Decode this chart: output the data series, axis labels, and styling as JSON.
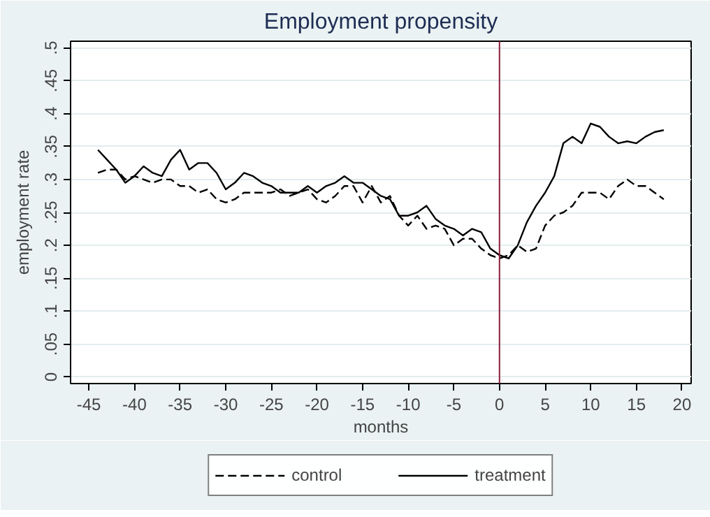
{
  "chart_data": {
    "type": "line",
    "title": "Employment propensity",
    "xlabel": "months",
    "ylabel": "employment rate",
    "x": [
      -44,
      -43,
      -42,
      -41,
      -40,
      -39,
      -38,
      -37,
      -36,
      -35,
      -34,
      -33,
      -32,
      -31,
      -30,
      -29,
      -28,
      -27,
      -26,
      -25,
      -24,
      -23,
      -22,
      -21,
      -20,
      -19,
      -18,
      -17,
      -16,
      -15,
      -14,
      -13,
      -12,
      -11,
      -10,
      -9,
      -8,
      -7,
      -6,
      -5,
      -4,
      -3,
      -2,
      -1,
      0,
      1,
      2,
      3,
      4,
      5,
      6,
      7,
      8,
      9,
      10,
      11,
      12,
      13,
      14,
      15,
      16,
      17,
      18
    ],
    "series": [
      {
        "name": "control",
        "color": "#000000",
        "line_style": "dashed",
        "values": [
          0.31,
          0.315,
          0.315,
          0.3,
          0.305,
          0.3,
          0.295,
          0.3,
          0.3,
          0.29,
          0.29,
          0.28,
          0.285,
          0.27,
          0.265,
          0.27,
          0.28,
          0.28,
          0.28,
          0.28,
          0.285,
          0.275,
          0.28,
          0.285,
          0.27,
          0.265,
          0.275,
          0.29,
          0.29,
          0.265,
          0.29,
          0.265,
          0.275,
          0.245,
          0.23,
          0.245,
          0.225,
          0.23,
          0.225,
          0.2,
          0.21,
          0.21,
          0.195,
          0.185,
          0.18,
          0.185,
          0.2,
          0.19,
          0.195,
          0.23,
          0.245,
          0.25,
          0.26,
          0.28,
          0.28,
          0.28,
          0.27,
          0.29,
          0.3,
          0.29,
          0.29,
          0.28,
          0.27
        ]
      },
      {
        "name": "treatment",
        "color": "#000000",
        "line_style": "solid",
        "values": [
          0.345,
          0.33,
          0.315,
          0.295,
          0.305,
          0.32,
          0.31,
          0.305,
          0.33,
          0.345,
          0.315,
          0.325,
          0.325,
          0.31,
          0.285,
          0.295,
          0.31,
          0.305,
          0.295,
          0.29,
          0.28,
          0.28,
          0.28,
          0.29,
          0.28,
          0.29,
          0.295,
          0.305,
          0.295,
          0.295,
          0.285,
          0.275,
          0.27,
          0.245,
          0.245,
          0.25,
          0.26,
          0.24,
          0.23,
          0.225,
          0.215,
          0.225,
          0.22,
          0.195,
          0.185,
          0.18,
          0.2,
          0.235,
          0.26,
          0.28,
          0.305,
          0.355,
          0.365,
          0.355,
          0.385,
          0.38,
          0.365,
          0.355,
          0.358,
          0.355,
          0.365,
          0.372,
          0.375
        ]
      }
    ],
    "xlim": [
      -47,
      21
    ],
    "ylim": [
      -0.01,
      0.51
    ],
    "xticks": [
      -45,
      -40,
      -35,
      -30,
      -25,
      -20,
      -15,
      -10,
      -5,
      0,
      5,
      10,
      15,
      20
    ],
    "yticks": [
      {
        "value": 0,
        "label": "0"
      },
      {
        "value": 0.05,
        "label": ".05"
      },
      {
        "value": 0.1,
        "label": ".1"
      },
      {
        "value": 0.15,
        "label": ".15"
      },
      {
        "value": 0.2,
        "label": ".2"
      },
      {
        "value": 0.25,
        "label": ".25"
      },
      {
        "value": 0.3,
        "label": ".3"
      },
      {
        "value": 0.35,
        "label": ".35"
      },
      {
        "value": 0.4,
        "label": ".4"
      },
      {
        "value": 0.45,
        "label": ".45"
      },
      {
        "value": 0.5,
        "label": ".5"
      }
    ],
    "ref_lines": [
      {
        "axis": "x",
        "value": 0,
        "label": null,
        "color": "#8b1a3a"
      }
    ],
    "grid": "y",
    "legend": "bottom",
    "marker": "none"
  }
}
